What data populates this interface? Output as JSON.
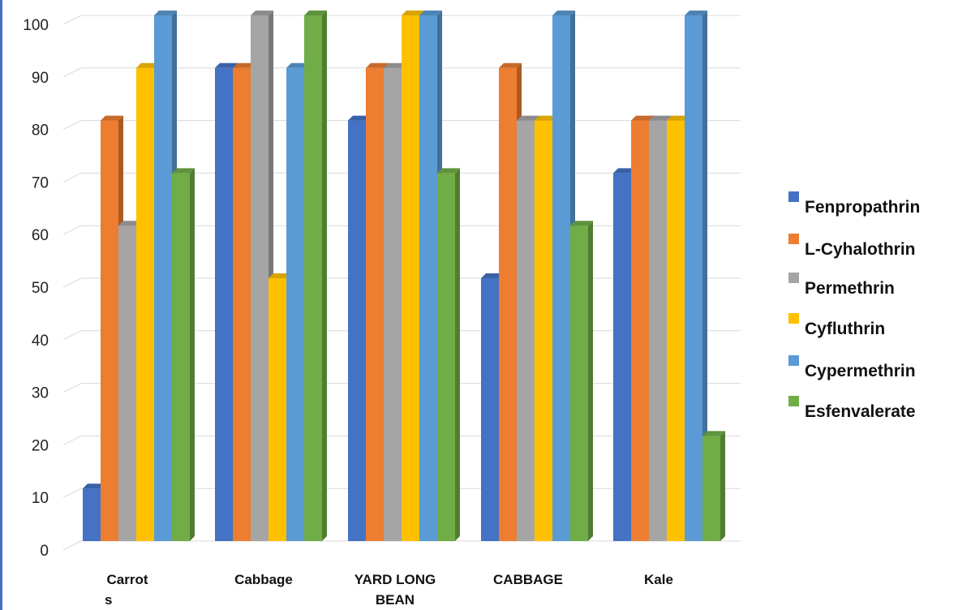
{
  "chart_data": {
    "type": "bar",
    "categories": [
      [
        "Carrot",
        "s"
      ],
      [
        "Cabbage"
      ],
      [
        "YARD LONG",
        "BEAN"
      ],
      [
        "CABBAGE"
      ],
      [
        "Kale"
      ]
    ],
    "series": [
      {
        "name": "Fenpropathrin",
        "color": "#4472C4",
        "values": [
          10,
          90,
          80,
          50,
          70
        ]
      },
      {
        "name": "L-Cyhalothrin",
        "color": "#ED7D31",
        "values": [
          80,
          90,
          90,
          90,
          80
        ]
      },
      {
        "name": "Permethrin",
        "color": "#A5A5A5",
        "values": [
          60,
          100,
          90,
          80,
          80
        ]
      },
      {
        "name": "Cyfluthrin",
        "color": "#FFC000",
        "values": [
          90,
          50,
          100,
          80,
          80
        ]
      },
      {
        "name": "Cypermethrin",
        "color": "#5B9BD5",
        "values": [
          100,
          90,
          100,
          100,
          100
        ]
      },
      {
        "name": "Esfenvalerate",
        "color": "#70AD47",
        "values": [
          70,
          100,
          70,
          60,
          20
        ]
      }
    ],
    "yticks": [
      "0",
      "10",
      "20",
      "30",
      "40",
      "50",
      "60",
      "70",
      "80",
      "90",
      "100"
    ],
    "ylim": [
      0,
      100
    ],
    "grid": true,
    "legend": "right",
    "style": "3d-column"
  }
}
